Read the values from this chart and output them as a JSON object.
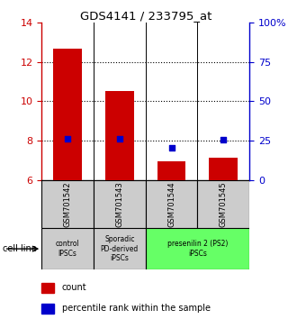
{
  "title": "GDS4141 / 233795_at",
  "samples": [
    "GSM701542",
    "GSM701543",
    "GSM701544",
    "GSM701545"
  ],
  "bar_bottom": 6.0,
  "bar_tops": [
    12.65,
    10.5,
    6.98,
    7.12
  ],
  "percentile_values": [
    26.5,
    26.0,
    20.5,
    25.5
  ],
  "ylim_left": [
    6,
    14
  ],
  "ylim_right": [
    0,
    100
  ],
  "yticks_left": [
    6,
    8,
    10,
    12,
    14
  ],
  "yticks_right": [
    0,
    25,
    50,
    75,
    100
  ],
  "ytick_labels_right": [
    "0",
    "25",
    "50",
    "75",
    "100%"
  ],
  "dotted_yticks": [
    8,
    10,
    12
  ],
  "bar_color": "#cc0000",
  "dot_color": "#0000cc",
  "group_labels": [
    {
      "text": "control\nIPSCs",
      "start": 0,
      "end": 1,
      "color": "#cccccc"
    },
    {
      "text": "Sporadic\nPD-derived\niPSCs",
      "start": 1,
      "end": 2,
      "color": "#cccccc"
    },
    {
      "text": "presenilin 2 (PS2)\niPSCs",
      "start": 2,
      "end": 4,
      "color": "#66ff66"
    }
  ],
  "legend_items": [
    {
      "color": "#cc0000",
      "label": "count"
    },
    {
      "color": "#0000cc",
      "label": "percentile rank within the sample"
    }
  ],
  "cell_line_label": "cell line",
  "sample_box_color": "#cccccc",
  "figsize": [
    3.3,
    3.54
  ],
  "dpi": 100
}
